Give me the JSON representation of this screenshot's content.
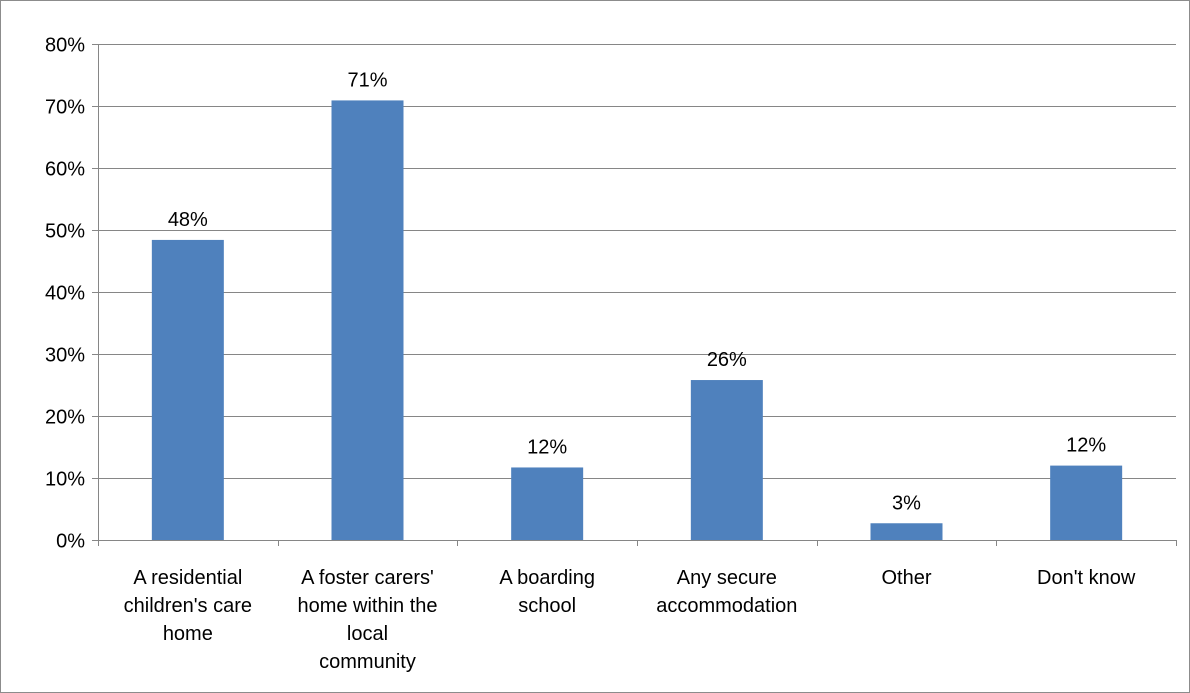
{
  "chart_data": {
    "type": "bar",
    "categories": [
      "A residential children's care home",
      "A foster carers' home within the local community",
      "A boarding school",
      "Any secure accommodation",
      "Other",
      "Don't know"
    ],
    "category_label_lines": [
      [
        "A residential",
        "children's care",
        "home"
      ],
      [
        "A foster carers'",
        "home within the",
        "local",
        "community"
      ],
      [
        "A boarding",
        "school"
      ],
      [
        "Any secure",
        "accommodation"
      ],
      [
        "Other"
      ],
      [
        "Don't know"
      ]
    ],
    "values": [
      48.4,
      70.9,
      11.7,
      25.8,
      2.7,
      12.0
    ],
    "data_labels": [
      "48%",
      "71%",
      "12%",
      "26%",
      "3%",
      "12%"
    ],
    "y_ticks": [
      0,
      10,
      20,
      30,
      40,
      50,
      60,
      70,
      80
    ],
    "y_tick_labels": [
      "0%",
      "10%",
      "20%",
      "30%",
      "40%",
      "50%",
      "60%",
      "70%",
      "80%"
    ],
    "ylim": [
      0,
      80
    ],
    "title": "",
    "xlabel": "",
    "ylabel": "",
    "grid": true,
    "legend": "none",
    "bar_color": "#4F81BD",
    "grid_color": "#868686"
  }
}
